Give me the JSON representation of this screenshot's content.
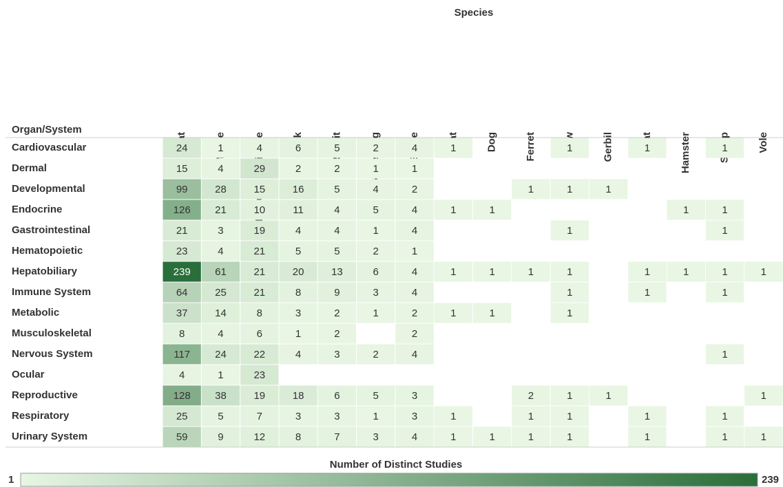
{
  "chart_data": {
    "type": "heatmap",
    "title": "Species",
    "row_header": "Organ/System",
    "columns": [
      "Rat",
      "Mouse",
      "Nonhuman Primate",
      "Mink",
      "Rabbit",
      "Guinea Pig",
      "Swine",
      "Cat",
      "Dog",
      "Ferret",
      "Cow",
      "Gerbil",
      "Goat",
      "Hamster",
      "Sheep",
      "Vole"
    ],
    "rows": [
      "Cardiovascular",
      "Dermal",
      "Developmental",
      "Endocrine",
      "Gastrointestinal",
      "Hematopoietic",
      "Hepatobiliary",
      "Immune System",
      "Metabolic",
      "Musculoskeletal",
      "Nervous System",
      "Ocular",
      "Reproductive",
      "Respiratory",
      "Urinary System"
    ],
    "values": [
      [
        24,
        1,
        4,
        6,
        5,
        2,
        4,
        1,
        null,
        null,
        1,
        null,
        1,
        null,
        1,
        null
      ],
      [
        15,
        4,
        29,
        2,
        2,
        1,
        1,
        null,
        null,
        null,
        null,
        null,
        null,
        null,
        null,
        null
      ],
      [
        99,
        28,
        15,
        16,
        5,
        4,
        2,
        null,
        null,
        1,
        1,
        1,
        null,
        null,
        null,
        null
      ],
      [
        126,
        21,
        10,
        11,
        4,
        5,
        4,
        1,
        1,
        null,
        null,
        null,
        null,
        1,
        1,
        null
      ],
      [
        21,
        3,
        19,
        4,
        4,
        1,
        4,
        null,
        null,
        null,
        1,
        null,
        null,
        null,
        1,
        null
      ],
      [
        23,
        4,
        21,
        5,
        5,
        2,
        1,
        null,
        null,
        null,
        null,
        null,
        null,
        null,
        null,
        null
      ],
      [
        239,
        61,
        21,
        20,
        13,
        6,
        4,
        1,
        1,
        1,
        1,
        null,
        1,
        1,
        1,
        1
      ],
      [
        64,
        25,
        21,
        8,
        9,
        3,
        4,
        null,
        null,
        null,
        1,
        null,
        1,
        null,
        1,
        null
      ],
      [
        37,
        14,
        8,
        3,
        2,
        1,
        2,
        1,
        1,
        null,
        1,
        null,
        null,
        null,
        null,
        null
      ],
      [
        8,
        4,
        6,
        1,
        2,
        null,
        2,
        null,
        null,
        null,
        null,
        null,
        null,
        null,
        null,
        null
      ],
      [
        117,
        24,
        22,
        4,
        3,
        2,
        4,
        null,
        null,
        null,
        null,
        null,
        null,
        null,
        1,
        null
      ],
      [
        4,
        1,
        23,
        null,
        null,
        null,
        null,
        null,
        null,
        null,
        null,
        null,
        null,
        null,
        null,
        null
      ],
      [
        128,
        38,
        19,
        18,
        6,
        5,
        3,
        null,
        null,
        2,
        1,
        1,
        null,
        null,
        null,
        1
      ],
      [
        25,
        5,
        7,
        3,
        3,
        1,
        3,
        1,
        null,
        1,
        1,
        null,
        1,
        null,
        1,
        null
      ],
      [
        59,
        9,
        12,
        8,
        7,
        3,
        4,
        1,
        1,
        1,
        1,
        null,
        1,
        null,
        1,
        1
      ]
    ],
    "colorscale": {
      "title": "Number of Distinct Studies",
      "min": 1,
      "max": 239,
      "colors": [
        "#e8f6e3",
        "#2a6e3b"
      ]
    }
  }
}
